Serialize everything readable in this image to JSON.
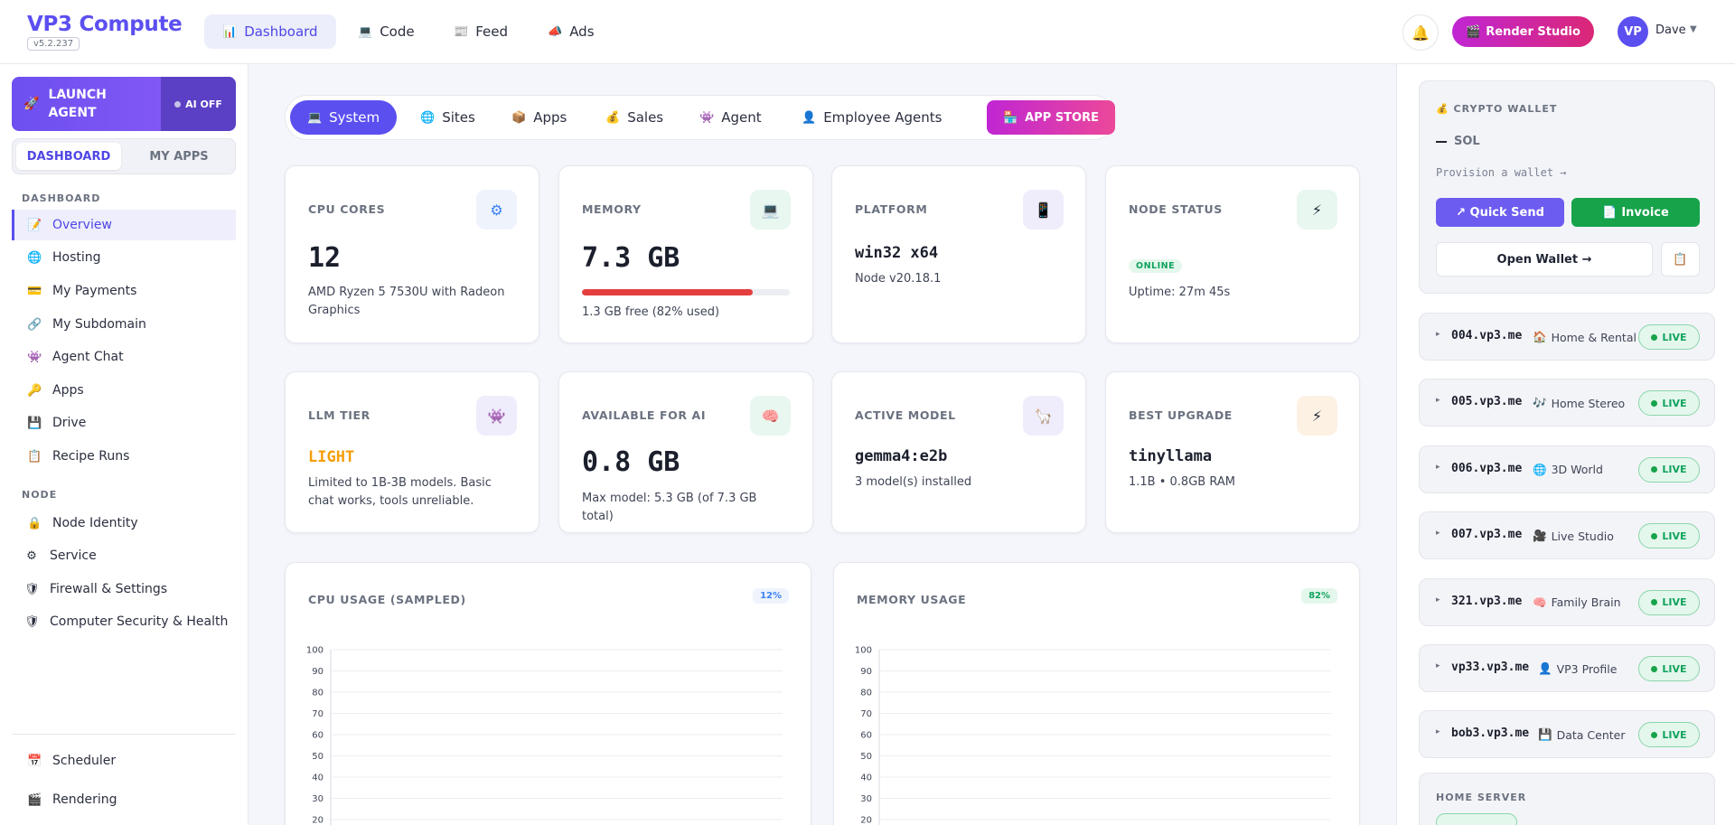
{
  "header": {
    "logo": "VP3 Compute",
    "version": "v5.2.237",
    "nav": [
      {
        "label": "Dashboard",
        "icon": "📊"
      },
      {
        "label": "Code",
        "icon": "💻"
      },
      {
        "label": "Feed",
        "icon": "📰"
      },
      {
        "label": "Ads",
        "icon": "📣"
      }
    ],
    "bell_icon": "🔔",
    "render_studio": {
      "label": "Render Studio",
      "icon": "🎬"
    },
    "user": {
      "initials": "VP",
      "name": "Dave",
      "caret": "▼"
    }
  },
  "sidebar": {
    "launch": {
      "icon": "🚀",
      "label": "LAUNCH AGENT",
      "ai_status": "AI OFF"
    },
    "segment": {
      "dashboard": "DASHBOARD",
      "my_apps": "MY APPS"
    },
    "sections": {
      "dashboard": "DASHBOARD",
      "node": "NODE"
    },
    "dashboard_items": [
      {
        "label": "Overview",
        "icon": "📝"
      },
      {
        "label": "Hosting",
        "icon": "🌐"
      },
      {
        "label": "My Payments",
        "icon": "💳"
      },
      {
        "label": "My Subdomain",
        "icon": "🔗"
      },
      {
        "label": "Agent Chat",
        "icon": "👾"
      },
      {
        "label": "Apps",
        "icon": "🔑"
      },
      {
        "label": "Drive",
        "icon": "💾"
      },
      {
        "label": "Recipe Runs",
        "icon": "📋"
      }
    ],
    "node_items": [
      {
        "label": "Node Identity",
        "icon": "🔒"
      },
      {
        "label": "Service",
        "icon": "⚙"
      },
      {
        "label": "Firewall & Settings",
        "icon": "🛡"
      },
      {
        "label": "Computer Security & Health",
        "icon": "🛡"
      }
    ],
    "bottom_items": [
      {
        "label": "Scheduler",
        "icon": "📅"
      },
      {
        "label": "Rendering",
        "icon": "🎬"
      }
    ]
  },
  "tabs": [
    {
      "label": "System",
      "icon": "💻"
    },
    {
      "label": "Sites",
      "icon": "🌐"
    },
    {
      "label": "Apps",
      "icon": "📦"
    },
    {
      "label": "Sales",
      "icon": "💰"
    },
    {
      "label": "Agent",
      "icon": "👾"
    },
    {
      "label": "Employee Agents",
      "icon": "👤"
    },
    {
      "label": "APP STORE",
      "icon": "🏪"
    }
  ],
  "stats": {
    "cpu": {
      "label": "CPU CORES",
      "icon": "⚙",
      "value": "12",
      "desc": "AMD Ryzen 5 7530U with Radeon Graphics"
    },
    "memory": {
      "label": "MEMORY",
      "icon": "💻",
      "value": "7.3 GB",
      "used_fraction": 0.82,
      "desc": "1.3 GB free (82% used)"
    },
    "platform": {
      "label": "PLATFORM",
      "icon": "📱",
      "value": "win32 x64",
      "desc": "Node v20.18.1"
    },
    "node": {
      "label": "NODE STATUS",
      "icon": "⚡",
      "status": "ONLINE",
      "desc": "Uptime: 27m 45s"
    },
    "llm": {
      "label": "LLM TIER",
      "icon": "👾",
      "value": "LIGHT",
      "desc": "Limited to 1B-3B models. Basic chat works, tools unreliable."
    },
    "ai": {
      "label": "AVAILABLE FOR AI",
      "icon": "🧠",
      "value": "0.8 GB",
      "desc": "Max model: 5.3 GB (of 7.3 GB total)"
    },
    "model": {
      "label": "ACTIVE MODEL",
      "icon": "🦙",
      "value": "gemma4:e2b",
      "desc": "3 model(s) installed"
    },
    "upgrade": {
      "label": "BEST UPGRADE",
      "icon": "⚡",
      "value": "tinyllama",
      "desc": "1.1B • 0.8GB RAM"
    }
  },
  "chart_data": [
    {
      "type": "line",
      "title": "CPU USAGE (SAMPLED)",
      "badge": "12%",
      "ylim": [
        0,
        100
      ],
      "y_ticks": [
        "100",
        "90",
        "80",
        "70",
        "60",
        "50",
        "40",
        "30",
        "20"
      ],
      "grid": true,
      "series": []
    },
    {
      "type": "line",
      "title": "MEMORY USAGE",
      "badge": "82%",
      "ylim": [
        0,
        100
      ],
      "y_ticks": [
        "100",
        "90",
        "80",
        "70",
        "60",
        "50",
        "40",
        "30",
        "20"
      ],
      "grid": true,
      "series": []
    }
  ],
  "wallet": {
    "title": "CRYPTO WALLET",
    "icon": "💰",
    "currency": "SOL",
    "provision": "Provision a wallet →",
    "quick_send": "↗ Quick Send",
    "invoice": "Invoice",
    "invoice_icon": "📄",
    "open_wallet": "Open Wallet →",
    "copy_icon": "📋"
  },
  "sites": [
    {
      "domain": "004.vp3.me",
      "icon": "🏠",
      "name": "Home & Rental",
      "status": "LIVE"
    },
    {
      "domain": "005.vp3.me",
      "icon": "🎶",
      "name": "Home Stereo",
      "status": "LIVE"
    },
    {
      "domain": "006.vp3.me",
      "icon": "🌐",
      "name": "3D World",
      "status": "LIVE"
    },
    {
      "domain": "007.vp3.me",
      "icon": "🎥",
      "name": "Live Studio",
      "status": "LIVE"
    },
    {
      "domain": "321.vp3.me",
      "icon": "🧠",
      "name": "Family Brain",
      "status": "LIVE"
    },
    {
      "domain": "vp33.vp3.me",
      "icon": "👤",
      "name": "VP3 Profile",
      "status": "LIVE"
    },
    {
      "domain": "bob3.vp3.me",
      "icon": "💾",
      "name": "Data Center",
      "status": "LIVE"
    }
  ],
  "home_server": {
    "title": "HOME SERVER"
  },
  "colors": {
    "accent": "#5b4ff0",
    "pink": "#db2777",
    "green": "#16a34a",
    "danger": "#e53e3e",
    "warning": "#f59e0b"
  }
}
